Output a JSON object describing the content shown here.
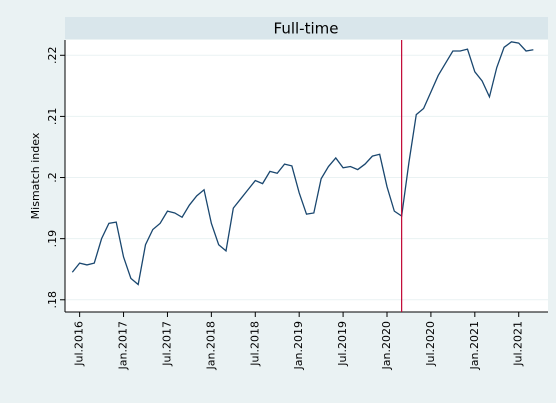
{
  "chart_data": {
    "type": "line",
    "title": "Full-time",
    "ylabel": "Mismatch index",
    "x": [
      "2016-06",
      "2016-07",
      "2016-08",
      "2016-09",
      "2016-10",
      "2016-11",
      "2016-12",
      "2017-01",
      "2017-02",
      "2017-03",
      "2017-04",
      "2017-05",
      "2017-06",
      "2017-07",
      "2017-08",
      "2017-09",
      "2017-10",
      "2017-11",
      "2017-12",
      "2018-01",
      "2018-02",
      "2018-03",
      "2018-04",
      "2018-05",
      "2018-06",
      "2018-07",
      "2018-08",
      "2018-09",
      "2018-10",
      "2018-11",
      "2018-12",
      "2019-01",
      "2019-02",
      "2019-03",
      "2019-04",
      "2019-05",
      "2019-06",
      "2019-07",
      "2019-08",
      "2019-09",
      "2019-10",
      "2019-11",
      "2019-12",
      "2020-01",
      "2020-02",
      "2020-03",
      "2020-04",
      "2020-05",
      "2020-06",
      "2020-07",
      "2020-08",
      "2020-09",
      "2020-10",
      "2020-11",
      "2020-12",
      "2021-01",
      "2021-02",
      "2021-03",
      "2021-04",
      "2021-05",
      "2021-06",
      "2021-07",
      "2021-08",
      "2021-09"
    ],
    "series": [
      {
        "color": "#1a476f",
        "values": [
          0.1845,
          0.186,
          0.1857,
          0.186,
          0.19,
          0.1925,
          0.1927,
          0.187,
          0.1835,
          0.1825,
          0.189,
          0.1915,
          0.1925,
          0.1945,
          0.1942,
          0.1935,
          0.1955,
          0.197,
          0.198,
          0.1925,
          0.189,
          0.188,
          0.195,
          0.1965,
          0.198,
          0.1995,
          0.199,
          0.201,
          0.2007,
          0.2022,
          0.2019,
          0.1975,
          0.194,
          0.1942,
          0.1998,
          0.2018,
          0.2032,
          0.2016,
          0.2018,
          0.2013,
          0.2022,
          0.2035,
          0.2038,
          0.1985,
          0.1945,
          0.1937,
          0.2025,
          0.2103,
          0.2113,
          0.214,
          0.2167,
          0.2187,
          0.2207,
          0.2207,
          0.221,
          0.2173,
          0.2158,
          0.2132,
          0.218,
          0.2213,
          0.2222,
          0.222,
          0.2207,
          0.2209
        ]
      }
    ],
    "xlim": [
      "2016-05",
      "2021-11"
    ],
    "xticks": [
      {
        "value": "2016-07",
        "label": "Jul.2016"
      },
      {
        "value": "2017-01",
        "label": "Jan.2017"
      },
      {
        "value": "2017-07",
        "label": "Jul.2017"
      },
      {
        "value": "2018-01",
        "label": "Jan.2018"
      },
      {
        "value": "2018-07",
        "label": "Jul.2018"
      },
      {
        "value": "2019-01",
        "label": "Jan.2019"
      },
      {
        "value": "2019-07",
        "label": "Jul.2019"
      },
      {
        "value": "2020-01",
        "label": "Jan.2020"
      },
      {
        "value": "2020-07",
        "label": "Jul.2020"
      },
      {
        "value": "2021-01",
        "label": "Jan.2021"
      },
      {
        "value": "2021-07",
        "label": "Jul.2021"
      }
    ],
    "ylim": [
      0.178,
      0.2225
    ],
    "yticks": [
      {
        "value": 0.18,
        "label": ".18"
      },
      {
        "value": 0.19,
        "label": ".19"
      },
      {
        "value": 0.2,
        "label": ".2"
      },
      {
        "value": 0.21,
        "label": ".21"
      },
      {
        "value": 0.22,
        "label": ".22"
      }
    ],
    "grid": true,
    "vline": {
      "x": "2020-03",
      "color": "#c10534"
    }
  }
}
